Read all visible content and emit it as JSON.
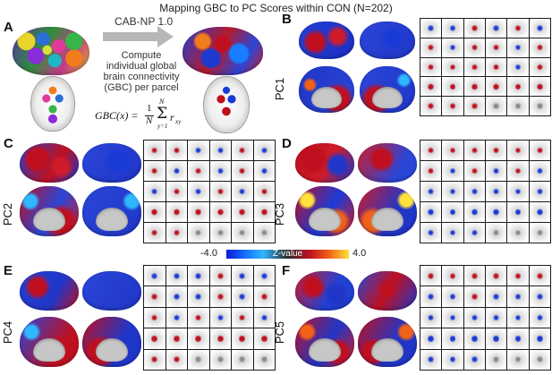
{
  "title": "Mapping GBC to PC Scores within CON (N=202)",
  "panels": {
    "a": {
      "letter": "A"
    },
    "b": {
      "letter": "B",
      "pc": "PC1"
    },
    "c": {
      "letter": "C",
      "pc": "PC2"
    },
    "d": {
      "letter": "D",
      "pc": "PC3"
    },
    "e": {
      "letter": "E",
      "pc": "PC4"
    },
    "f": {
      "letter": "F",
      "pc": "PC5"
    }
  },
  "panel_a": {
    "pipeline_label": "CAB-NP 1.0",
    "compute_lines": [
      "Compute",
      "individual global",
      "brain connectivity",
      "(GBC) per parcel"
    ],
    "formula_lhs": "GBC(x) =",
    "formula_frac_num": "1",
    "formula_frac_den": "N",
    "formula_sum_top": "N",
    "formula_sum_bottom": "y=1",
    "formula_term": "r",
    "formula_sub": "xy"
  },
  "colorbar": {
    "min_label": "-4.0",
    "mid_label": "Z-value",
    "max_label": "4.0",
    "colors": [
      "#0a1bd8",
      "#1a7cff",
      "#2fb7ff",
      "#2a2a2a",
      "#c01020",
      "#f26218",
      "#ffe23a"
    ]
  }
}
